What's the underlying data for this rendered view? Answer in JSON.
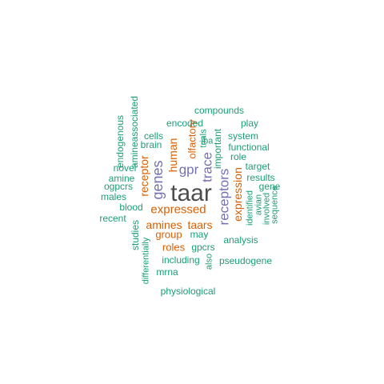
{
  "colors": {
    "background": "#ffffff",
    "gray": "#4d4d4d",
    "purple": "#7570b3",
    "orange": "#d95f02",
    "teal": "#1b9e77"
  },
  "words": {
    "taar": "taar",
    "receptors": "receptors",
    "genes": "genes",
    "trace": "trace",
    "gpr": "gpr",
    "expressed": "expressed",
    "expression": "expression",
    "receptor": "receptor",
    "human": "human",
    "olfactory": "olfactory",
    "amines": "amines",
    "taars": "taars",
    "group": "group",
    "roles": "roles",
    "compounds": "compounds",
    "play": "play",
    "encoded": "encoded",
    "important": "important",
    "cells": "cells",
    "trials": "trials",
    "iba": "iba",
    "system": "system",
    "brain": "brain",
    "functional": "functional",
    "role": "role",
    "endogenous": "endogenous",
    "amineassociated": "amineassociated",
    "novel": "novel",
    "target": "target",
    "results": "results",
    "amine": "amine",
    "gene": "gene",
    "ogpcrs": "ogpcrs",
    "identified": "identified",
    "avian": "avian",
    "involved": "involved",
    "sequence": "sequence",
    "males": "males",
    "blood": "blood",
    "recent": "recent",
    "studies": "studies",
    "differentially": "differentially",
    "may": "may",
    "analysis": "analysis",
    "gpcrs": "gpcrs",
    "including": "including",
    "also": "also",
    "pseudogene": "pseudogene",
    "mrna": "mrna",
    "physiological": "physiological"
  }
}
